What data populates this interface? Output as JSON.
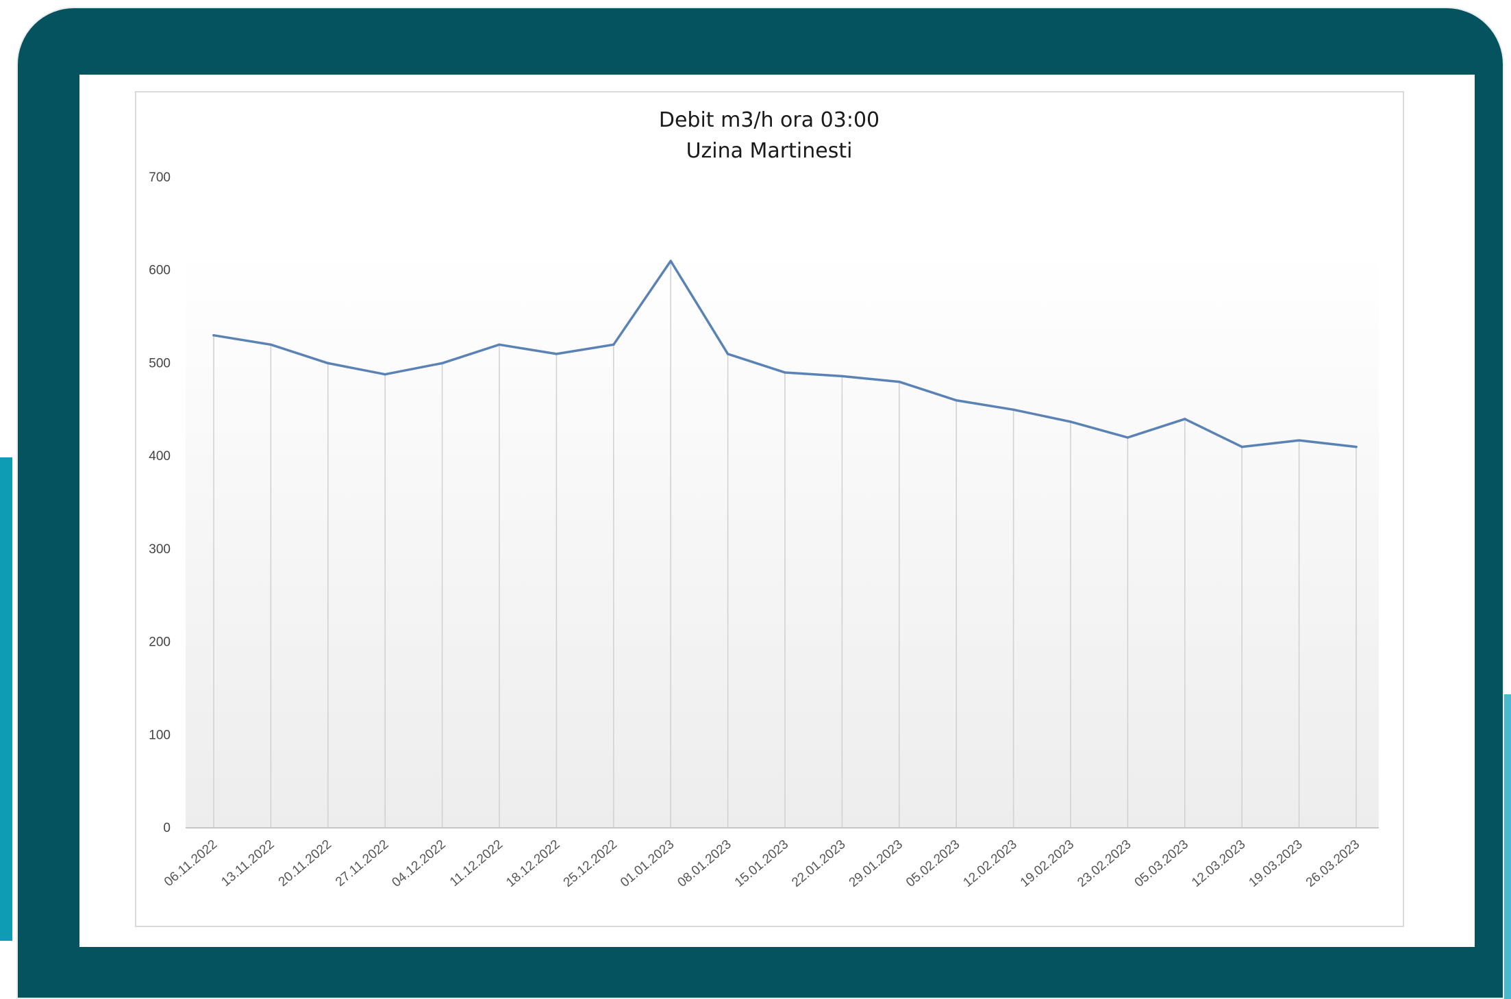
{
  "colors": {
    "frame": "#04535f",
    "accent_left": "#0e9bb4",
    "accent_right": "#4bb9cd",
    "series_line": "#5b82b4",
    "gridline": "#d0d0d0"
  },
  "chart_data": {
    "type": "area",
    "title": "Debit m3/h ora 03:00",
    "subtitle": "Uzina Martinesti",
    "xlabel": "",
    "ylabel": "",
    "ylim": [
      0,
      700
    ],
    "yticks": [
      "0",
      "100",
      "200",
      "300",
      "400",
      "500",
      "600",
      "700"
    ],
    "grid": "vertical",
    "legend": "none",
    "categories": [
      "06.11.2022",
      "13.11.2022",
      "20.11.2022",
      "27.11.2022",
      "04.12.2022",
      "11.12.2022",
      "18.12.2022",
      "25.12.2022",
      "01.01.2023",
      "08.01.2023",
      "15.01.2023",
      "22.01.2023",
      "29.01.2023",
      "05.02.2023",
      "12.02.2023",
      "19.02.2023",
      "23.02.2023",
      "05.03.2023",
      "12.03.2023",
      "19.03.2023",
      "26.03.2023"
    ],
    "series": [
      {
        "values": [
          530,
          520,
          500,
          488,
          500,
          520,
          510,
          520,
          610,
          510,
          490,
          486,
          480,
          460,
          450,
          437,
          420,
          440,
          410,
          417,
          410
        ]
      }
    ]
  }
}
